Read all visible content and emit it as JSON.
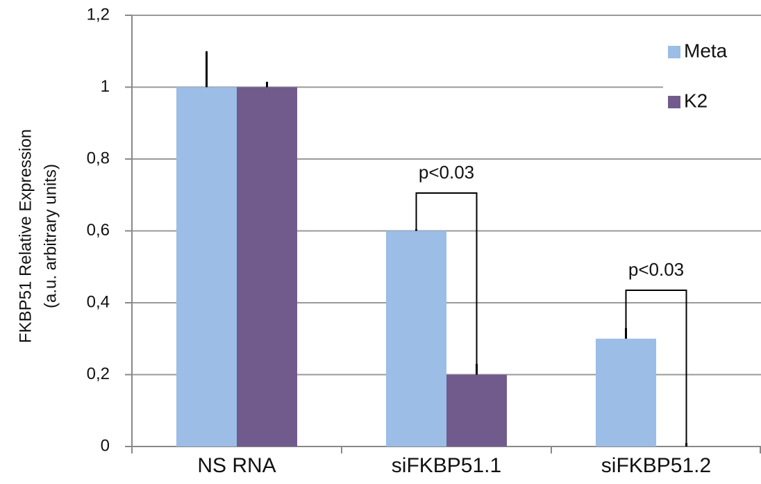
{
  "chart_data": {
    "type": "bar",
    "y_label_lines": [
      "FKBP51 Relative Expression",
      "(a.u. arbitrary units)"
    ],
    "categories": [
      "NS RNA",
      "siFKBP51.1",
      "siFKBP51.2"
    ],
    "series": [
      {
        "name": "Meta",
        "color": "#9bbde6",
        "values": [
          1,
          0.6,
          0.3
        ],
        "errors": [
          0.1,
          0.005,
          0.03
        ]
      },
      {
        "name": "K2",
        "color": "#715b8d",
        "values": [
          1,
          0.2,
          0
        ],
        "errors": [
          0.015,
          0.03,
          0.01
        ]
      }
    ],
    "annotations": [
      "p<0.03",
      "p<0.03"
    ],
    "ylim": [
      0,
      1.2
    ],
    "yticks": [
      0,
      {
        "value": 0.2,
        "label": "0,2"
      },
      {
        "value": 0.4,
        "label": "0,4"
      },
      {
        "value": 0.6,
        "label": "0,6"
      },
      {
        "value": 0.8,
        "label": "0,8"
      },
      1,
      {
        "value": 1.2,
        "label": "1,2"
      }
    ],
    "grid": true,
    "legend": "upper right"
  }
}
